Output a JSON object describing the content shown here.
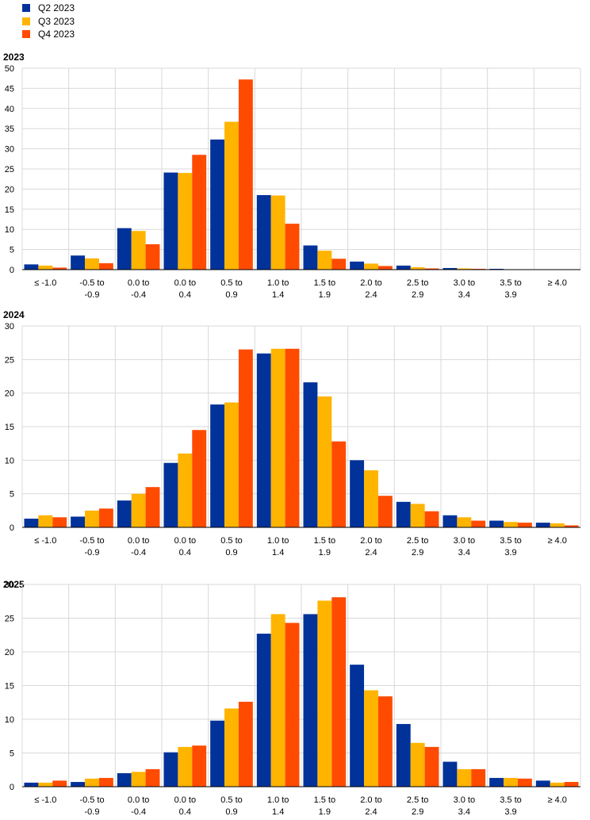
{
  "legend": [
    {
      "name": "Q2 2023",
      "color": "#003299"
    },
    {
      "name": "Q3 2023",
      "color": "#FFB400"
    },
    {
      "name": "Q4 2023",
      "color": "#FF4B00"
    }
  ],
  "chart_data": [
    {
      "type": "bar",
      "title": "2023",
      "categories": [
        [
          "≤ -1.0"
        ],
        [
          "-0.5  to",
          "-0.9"
        ],
        [
          "0.0  to",
          "-0.4"
        ],
        [
          "0.0  to",
          "0.4"
        ],
        [
          "0.5  to",
          "0.9"
        ],
        [
          "1.0  to",
          "1.4"
        ],
        [
          "1.5  to",
          "1.9"
        ],
        [
          "2.0  to",
          "2.4"
        ],
        [
          "2.5  to",
          "2.9"
        ],
        [
          "3.0  to",
          "3.4"
        ],
        [
          "3.5  to",
          "3.9"
        ],
        [
          "≥ 4.0"
        ]
      ],
      "ylim": [
        0,
        50
      ],
      "yticks": [
        0,
        5,
        10,
        15,
        20,
        25,
        30,
        35,
        40,
        45,
        50
      ],
      "series": [
        {
          "name": "Q2 2023",
          "values": [
            1.3,
            3.5,
            10.3,
            24.1,
            32.3,
            18.5,
            6.0,
            2.0,
            1.0,
            0.4,
            0.2,
            0.1
          ]
        },
        {
          "name": "Q3 2023",
          "values": [
            1.0,
            2.8,
            9.6,
            24.0,
            36.7,
            18.4,
            4.7,
            1.5,
            0.6,
            0.3,
            0.1,
            0.1
          ]
        },
        {
          "name": "Q4 2023",
          "values": [
            0.5,
            1.6,
            6.3,
            28.5,
            47.2,
            11.4,
            2.7,
            0.9,
            0.3,
            0.2,
            0.1,
            0.1
          ]
        }
      ],
      "grid": true
    },
    {
      "type": "bar",
      "title": "2024",
      "categories": [
        [
          "≤ -1.0"
        ],
        [
          "-0.5  to",
          "-0.9"
        ],
        [
          "0.0  to",
          "-0.4"
        ],
        [
          "0.0  to",
          "0.4"
        ],
        [
          "0.5  to",
          "0.9"
        ],
        [
          "1.0  to",
          "1.4"
        ],
        [
          "1.5  to",
          "1.9"
        ],
        [
          "2.0  to",
          "2.4"
        ],
        [
          "2.5  to",
          "2.9"
        ],
        [
          "3.0  to",
          "3.4"
        ],
        [
          "3.5  to",
          "3.9"
        ],
        [
          "≥ 4.0"
        ]
      ],
      "ylim": [
        0,
        30
      ],
      "yticks": [
        0,
        5,
        10,
        15,
        20,
        25,
        30
      ],
      "series": [
        {
          "name": "Q2 2023",
          "values": [
            1.3,
            1.6,
            4.0,
            9.6,
            18.3,
            25.9,
            21.6,
            10.0,
            3.8,
            1.8,
            1.0,
            0.7
          ]
        },
        {
          "name": "Q3 2023",
          "values": [
            1.8,
            2.5,
            5.0,
            11.0,
            18.6,
            26.6,
            19.5,
            8.5,
            3.5,
            1.5,
            0.8,
            0.6
          ]
        },
        {
          "name": "Q4 2023",
          "values": [
            1.5,
            2.8,
            6.0,
            14.5,
            26.5,
            26.6,
            12.8,
            4.7,
            2.4,
            1.0,
            0.7,
            0.3
          ]
        }
      ],
      "grid": true
    },
    {
      "type": "bar",
      "title": "2025",
      "categories": [
        [
          "≤ -1.0"
        ],
        [
          "-0.5  to",
          "-0.9"
        ],
        [
          "0.0  to",
          "-0.4"
        ],
        [
          "0.0  to",
          "0.4"
        ],
        [
          "0.5  to",
          "0.9"
        ],
        [
          "1.0  to",
          "1.4"
        ],
        [
          "1.5  to",
          "1.9"
        ],
        [
          "2.0  to",
          "2.4"
        ],
        [
          "2.5  to",
          "2.9"
        ],
        [
          "3.0  to",
          "3.4"
        ],
        [
          "3.5  to",
          "3.9"
        ],
        [
          "≥ 4.0"
        ]
      ],
      "ylim": [
        0,
        30
      ],
      "yticks": [
        0,
        5,
        10,
        15,
        20,
        25,
        30
      ],
      "series": [
        {
          "name": "Q2 2023",
          "values": [
            0.6,
            0.7,
            2.0,
            5.1,
            9.8,
            22.7,
            25.6,
            18.1,
            9.3,
            3.7,
            1.3,
            0.9
          ]
        },
        {
          "name": "Q3 2023",
          "values": [
            0.6,
            1.2,
            2.2,
            5.9,
            11.6,
            25.6,
            27.6,
            14.3,
            6.5,
            2.6,
            1.3,
            0.6
          ]
        },
        {
          "name": "Q4 2023",
          "values": [
            0.9,
            1.3,
            2.6,
            6.1,
            12.6,
            24.3,
            28.1,
            13.4,
            5.9,
            2.6,
            1.2,
            0.7
          ]
        }
      ],
      "grid": true
    }
  ]
}
